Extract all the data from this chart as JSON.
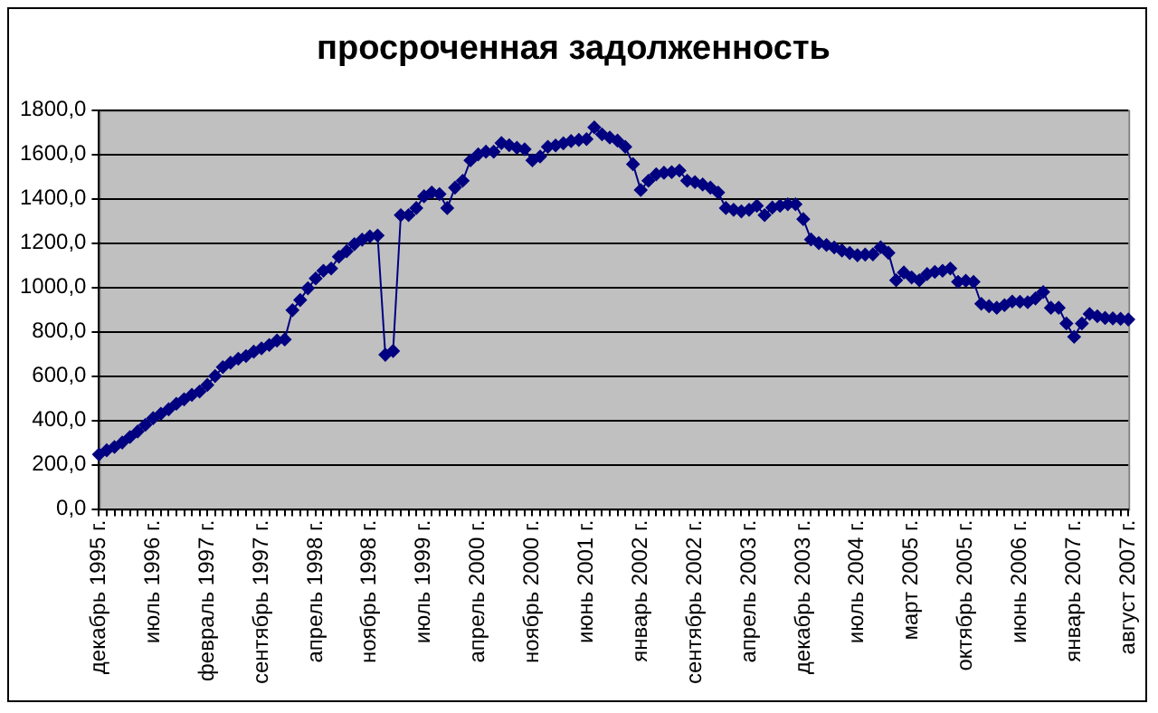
{
  "chart_data": {
    "type": "line",
    "title": "просроченная задолженность",
    "categories": [
      "декабрь 1995 г.",
      null,
      null,
      null,
      null,
      null,
      null,
      "июль 1996 г.",
      null,
      null,
      null,
      null,
      null,
      null,
      "февраль 1997 г.",
      null,
      null,
      null,
      null,
      null,
      null,
      "сентябрь 1997 г.",
      null,
      null,
      null,
      null,
      null,
      null,
      "апрель 1998 г.",
      null,
      null,
      null,
      null,
      null,
      null,
      "ноябрь 1998 г.",
      null,
      null,
      null,
      null,
      null,
      null,
      "июль 1999 г.",
      null,
      null,
      null,
      null,
      null,
      null,
      "апрель 2000 г.",
      null,
      null,
      null,
      null,
      null,
      null,
      "ноябрь 2000 г.",
      null,
      null,
      null,
      null,
      null,
      null,
      "июнь 2001 г.",
      null,
      null,
      null,
      null,
      null,
      null,
      "январь 2002 г.",
      null,
      null,
      null,
      null,
      null,
      null,
      "сентябрь 2002 г.",
      null,
      null,
      null,
      null,
      null,
      null,
      "апрель 2003 г.",
      null,
      null,
      null,
      null,
      null,
      null,
      "декабрь 2003 г.",
      null,
      null,
      null,
      null,
      null,
      null,
      "июль 2004 г.",
      null,
      null,
      null,
      null,
      null,
      null,
      "март 2005 г.",
      null,
      null,
      null,
      null,
      null,
      null,
      "октябрь 2005 г.",
      null,
      null,
      null,
      null,
      null,
      null,
      "июнь 2006 г.",
      null,
      null,
      null,
      null,
      null,
      null,
      "январь 2007 г.",
      null,
      null,
      null,
      null,
      null,
      null,
      "август 2007 г."
    ],
    "series": [
      {
        "color": "#000080",
        "values": [
          246,
          265,
          280,
          300,
          325,
          350,
          380,
          410,
          430,
          450,
          475,
          495,
          515,
          530,
          560,
          600,
          640,
          660,
          678,
          690,
          710,
          725,
          740,
          760,
          765,
          897,
          943,
          996,
          1040,
          1075,
          1085,
          1138,
          1163,
          1195,
          1215,
          1230,
          1234,
          696,
          713,
          1326,
          1326,
          1358,
          1411,
          1428,
          1421,
          1358,
          1450,
          1481,
          1573,
          1600,
          1612,
          1612,
          1651,
          1641,
          1630,
          1623,
          1573,
          1590,
          1634,
          1640,
          1650,
          1660,
          1665,
          1669,
          1722,
          1690,
          1676,
          1662,
          1634,
          1556,
          1439,
          1481,
          1510,
          1517,
          1520,
          1527,
          1481,
          1475,
          1464,
          1450,
          1428,
          1358,
          1350,
          1343,
          1350,
          1368,
          1326,
          1360,
          1368,
          1375,
          1375,
          1308,
          1216,
          1200,
          1191,
          1180,
          1166,
          1155,
          1145,
          1148,
          1149,
          1181,
          1156,
          1032,
          1067,
          1045,
          1032,
          1060,
          1070,
          1075,
          1085,
          1025,
          1030,
          1025,
          926,
          915,
          908,
          920,
          936,
          935,
          933,
          950,
          979,
          908,
          908,
          837,
          777,
          837,
          880,
          870,
          862,
          860,
          858,
          855
        ]
      }
    ],
    "ylim": [
      0,
      1800
    ],
    "yticks": [
      {
        "value": 0,
        "label": "0,0"
      },
      {
        "value": 200,
        "label": "200,0"
      },
      {
        "value": 400,
        "label": "400,0"
      },
      {
        "value": 600,
        "label": "600,0"
      },
      {
        "value": 800,
        "label": "800,0"
      },
      {
        "value": 1000,
        "label": "1000,0"
      },
      {
        "value": 1200,
        "label": "1200,0"
      },
      {
        "value": 1400,
        "label": "1400,0"
      },
      {
        "value": 1600,
        "label": "1600,0"
      },
      {
        "value": 1800,
        "label": "1800,0"
      }
    ],
    "grid": "y",
    "legend": false,
    "marker": "diamond",
    "line_style": "solid"
  }
}
